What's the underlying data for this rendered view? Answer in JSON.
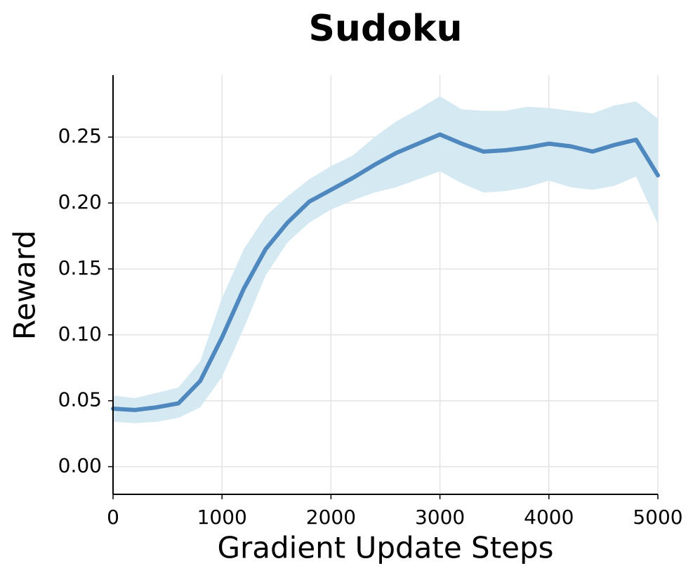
{
  "chart_data": {
    "type": "line",
    "title": "Sudoku",
    "x_label": "Gradient Update Steps",
    "y_label": "Reward",
    "x": [
      0,
      200,
      400,
      600,
      800,
      1000,
      1200,
      1400,
      1600,
      1800,
      2000,
      2200,
      2400,
      2600,
      2800,
      3000,
      3200,
      3400,
      3600,
      3800,
      4000,
      4200,
      4400,
      4600,
      4800,
      5000
    ],
    "series": [
      {
        "color": "#4e88be",
        "band_color": "#d5e9f3",
        "values": [
          0.044,
          0.043,
          0.045,
          0.048,
          0.065,
          0.098,
          0.135,
          0.165,
          0.185,
          0.201,
          0.21,
          0.219,
          0.229,
          0.238,
          0.245,
          0.252,
          0.245,
          0.239,
          0.24,
          0.242,
          0.245,
          0.243,
          0.239,
          0.244,
          0.248,
          0.221
        ],
        "lower": [
          0.034,
          0.033,
          0.034,
          0.037,
          0.045,
          0.068,
          0.105,
          0.145,
          0.17,
          0.185,
          0.195,
          0.202,
          0.208,
          0.212,
          0.218,
          0.224,
          0.215,
          0.208,
          0.209,
          0.212,
          0.217,
          0.212,
          0.21,
          0.213,
          0.22,
          0.184
        ],
        "upper": [
          0.054,
          0.052,
          0.056,
          0.06,
          0.08,
          0.128,
          0.165,
          0.19,
          0.205,
          0.218,
          0.228,
          0.236,
          0.25,
          0.262,
          0.271,
          0.281,
          0.271,
          0.27,
          0.27,
          0.273,
          0.272,
          0.27,
          0.268,
          0.274,
          0.277,
          0.264
        ]
      }
    ],
    "xlim": [
      0,
      5000
    ],
    "ylim": [
      -0.021,
      0.297
    ],
    "xticks": [
      0,
      1000,
      2000,
      3000,
      4000,
      5000
    ],
    "yticks": [
      {
        "value": 0,
        "label": "0.00"
      },
      {
        "value": 0.05,
        "label": "0.05"
      },
      {
        "value": 0.1,
        "label": "0.10"
      },
      {
        "value": 0.15,
        "label": "0.15"
      },
      {
        "value": 0.2,
        "label": "0.20"
      },
      {
        "value": 0.25,
        "label": "0.25"
      }
    ],
    "grid": true
  }
}
